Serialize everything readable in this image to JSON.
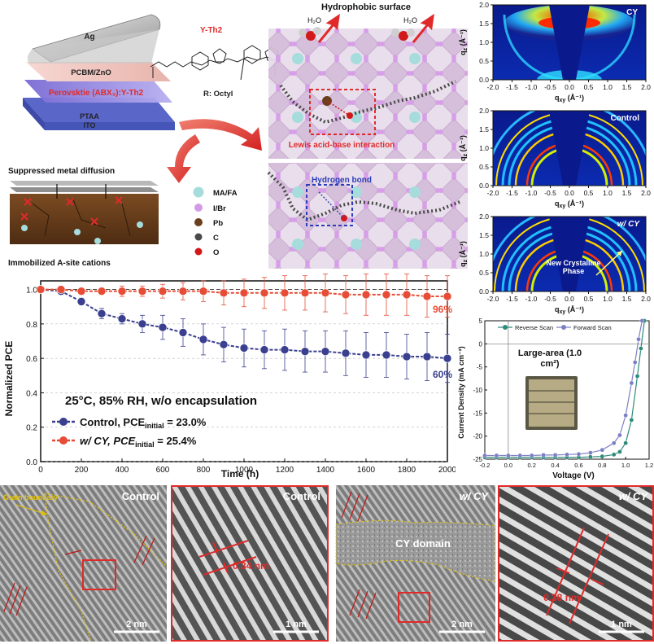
{
  "schematic": {
    "device_layers": {
      "ag": "Ag",
      "pcbm": "PCBM/ZnO",
      "perovskite": "Perovsktie (ABX₃):Y-Th2",
      "ptaa": "PTAA",
      "ito": "ITO"
    },
    "molecule": {
      "name": "Y-Th2",
      "side_chain": "R: Octyl"
    },
    "top_right_title": "Hydrophobic surface",
    "h2o": "H₂O",
    "lewis_label": "Lewis acid-base interaction",
    "hbond_label": "Hydrogen bond",
    "suppressed": "Suppressed metal diffusion",
    "immobilized": "Immobilized A-site cations",
    "legend": [
      {
        "label": "MA/FA",
        "color": "#a6dcdc"
      },
      {
        "label": "I/Br",
        "color": "#d59ae6"
      },
      {
        "label": "Pb",
        "color": "#6b3f1e"
      },
      {
        "label": "C",
        "color": "#4a4a4a"
      },
      {
        "label": "O",
        "color": "#d11919"
      }
    ]
  },
  "stability": {
    "chart_data": {
      "type": "line",
      "xlabel": "Time (h)",
      "ylabel": "Normalized PCE",
      "xlim": [
        0,
        2000
      ],
      "ylim": [
        0.0,
        1.05
      ],
      "xticks": [
        0,
        200,
        400,
        600,
        800,
        1000,
        1200,
        1400,
        1600,
        1800,
        2000
      ],
      "yticks": [
        0.0,
        0.2,
        0.4,
        0.6,
        0.8,
        1.0
      ],
      "grid": "horizontal-dashed",
      "condition": "25°C, 85% RH, w/o encapsulation",
      "series": [
        {
          "name": "Control, PCE initial = 23.0%",
          "color": "#3a3f8f",
          "x": [
            0,
            100,
            200,
            300,
            400,
            500,
            600,
            700,
            800,
            900,
            1000,
            1100,
            1200,
            1300,
            1400,
            1500,
            1600,
            1700,
            1800,
            1900,
            2000
          ],
          "y": [
            1.0,
            0.99,
            0.93,
            0.86,
            0.83,
            0.8,
            0.78,
            0.75,
            0.71,
            0.68,
            0.66,
            0.65,
            0.65,
            0.64,
            0.64,
            0.63,
            0.62,
            0.62,
            0.61,
            0.61,
            0.6
          ],
          "err": [
            0.0,
            0.02,
            0.02,
            0.03,
            0.03,
            0.05,
            0.07,
            0.08,
            0.09,
            0.1,
            0.11,
            0.11,
            0.12,
            0.12,
            0.12,
            0.13,
            0.13,
            0.13,
            0.13,
            0.14,
            0.14
          ],
          "end_label": "60%"
        },
        {
          "name": "w/ CY, PCE initial = 25.4%",
          "color": "#e64c36",
          "x": [
            0,
            100,
            200,
            300,
            400,
            500,
            600,
            700,
            800,
            900,
            1000,
            1100,
            1200,
            1300,
            1400,
            1500,
            1600,
            1700,
            1800,
            1900,
            2000
          ],
          "y": [
            1.0,
            1.0,
            0.99,
            0.99,
            0.99,
            0.99,
            0.99,
            0.99,
            0.99,
            0.98,
            0.98,
            0.98,
            0.98,
            0.98,
            0.98,
            0.97,
            0.97,
            0.97,
            0.97,
            0.96,
            0.96
          ],
          "err": [
            0.0,
            0.02,
            0.02,
            0.02,
            0.03,
            0.03,
            0.04,
            0.05,
            0.06,
            0.07,
            0.08,
            0.09,
            0.1,
            0.1,
            0.11,
            0.11,
            0.12,
            0.12,
            0.12,
            0.12,
            0.12
          ],
          "end_label": "96%"
        }
      ]
    },
    "legend": [
      {
        "pre": "Control, PCE",
        "sub": "initial",
        "post": " = 23.0%"
      },
      {
        "pre": "w/ CY, PCE",
        "sub": "initial",
        "post": " = 25.4%"
      }
    ]
  },
  "giwaxs": {
    "panels": [
      {
        "label": "CY",
        "annotation": ""
      },
      {
        "label": "Control",
        "annotation": ""
      },
      {
        "label": "w/ CY",
        "annotation": "New Crystalline Phase"
      }
    ],
    "xlabel": "q",
    "xlabel_sub": "xy",
    "xlabel_unit": " (Å⁻¹)",
    "ylabel": "q",
    "ylabel_sub": "z",
    "ylabel_unit": " (Å⁻¹)",
    "xticks": [
      -2.0,
      -1.5,
      -1.0,
      -0.5,
      0.0,
      0.5,
      1.0,
      1.5,
      2.0
    ],
    "yticks": [
      0.0,
      0.5,
      1.0,
      1.5,
      2.0
    ]
  },
  "jv": {
    "chart_data": {
      "type": "line",
      "xlabel": "Voltage (V)",
      "ylabel": "Current Density (mA cm⁻²)",
      "xlim": [
        -0.2,
        1.2
      ],
      "ylim": [
        -25,
        5
      ],
      "xticks": [
        -0.2,
        0.0,
        0.2,
        0.4,
        0.6,
        0.8,
        1.0,
        1.2
      ],
      "yticks": [
        -25,
        -20,
        -15,
        -10,
        -5,
        0,
        5
      ],
      "annotation": "Large-area (1.0 cm²)",
      "series": [
        {
          "name": "Reverse Scan",
          "color": "#2e8b7a",
          "x": [
            -0.2,
            -0.1,
            0.0,
            0.1,
            0.2,
            0.3,
            0.4,
            0.5,
            0.6,
            0.7,
            0.8,
            0.9,
            0.95,
            1.0,
            1.05,
            1.1,
            1.13,
            1.16
          ],
          "y": [
            -24.6,
            -24.6,
            -24.6,
            -24.6,
            -24.6,
            -24.6,
            -24.6,
            -24.6,
            -24.6,
            -24.5,
            -24.4,
            -24.0,
            -23.4,
            -21.5,
            -16.5,
            -7.0,
            -1.0,
            5.0
          ]
        },
        {
          "name": "Forward Scan",
          "color": "#7d7fc4",
          "x": [
            -0.2,
            -0.1,
            0.0,
            0.1,
            0.2,
            0.3,
            0.4,
            0.5,
            0.6,
            0.7,
            0.8,
            0.9,
            0.95,
            1.0,
            1.05,
            1.08,
            1.11,
            1.14
          ],
          "y": [
            -24.2,
            -24.2,
            -24.2,
            -24.2,
            -24.2,
            -24.1,
            -24.1,
            -24.0,
            -23.9,
            -23.6,
            -23.0,
            -21.5,
            -19.8,
            -15.5,
            -8.5,
            -4.0,
            1.0,
            5.0
          ]
        }
      ]
    }
  },
  "tem": {
    "panels": [
      {
        "label": "Control",
        "italic": false,
        "scalebar": "2 nm",
        "extra": "Grain boundary"
      },
      {
        "label": "Control",
        "italic": false,
        "scalebar": "1 nm",
        "extra": "0.34 nm"
      },
      {
        "label": "w/ CY",
        "italic": true,
        "scalebar": "2 nm",
        "extra": "CY domain"
      },
      {
        "label": "w/ CY",
        "italic": true,
        "scalebar": "1 nm",
        "extra": "0.38 nm"
      }
    ]
  }
}
